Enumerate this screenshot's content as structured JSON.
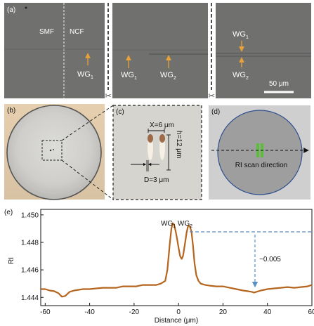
{
  "panels": {
    "a": {
      "label": "(a)",
      "sub1": {
        "smf": "SMF",
        "ncf": "NCF",
        "wg1": "WG",
        "wg1_sub": "1"
      },
      "sub2": {
        "wg1": "WG",
        "wg1_sub": "1",
        "wg2": "WG",
        "wg2_sub": "2"
      },
      "sub3": {
        "wg1": "WG",
        "wg1_sub": "1",
        "wg2": "WG",
        "wg2_sub": "2",
        "scale": "50 μm"
      }
    },
    "b": {
      "label": "(b)"
    },
    "c": {
      "label": "(c)",
      "x": "X=6 μm",
      "h": "h=12 μm",
      "d": "D=3 μm"
    },
    "d": {
      "label": "(d)",
      "scan": "RI scan direction"
    },
    "e": {
      "label": "(e)",
      "annotation": "~0.005",
      "peak_wg1": "WG",
      "peak_wg1_sub": "1",
      "peak_wg2": " WG",
      "peak_wg2_sub": "2"
    }
  },
  "colors": {
    "arrow": "#e8a23a",
    "curve": "#b5651d",
    "dashed": "#5b8fc7",
    "green": "#5bbf3a"
  },
  "chart_data": {
    "type": "line",
    "xlabel": "Distance (μm)",
    "ylabel": "RI",
    "xlim": [
      -62,
      60
    ],
    "ylim": [
      1.4434,
      1.4504
    ],
    "xticks": [
      -60,
      -40,
      -20,
      0,
      20,
      40,
      60
    ],
    "yticks": [
      1.444,
      1.446,
      1.448,
      1.45
    ],
    "ytick_labels": [
      "1.444",
      "1.446",
      "1.448",
      "1.450"
    ],
    "series": [
      {
        "x": [
          -62,
          -60,
          -58,
          -56,
          -54,
          -52.5,
          -51,
          -49,
          -47,
          -45,
          -43,
          -40,
          -37,
          -34,
          -31,
          -28,
          -25,
          -22,
          -19,
          -16,
          -13,
          -10,
          -8,
          -6,
          -5,
          -4,
          -3.2,
          -2.6,
          -2,
          -1.3,
          -0.6,
          0,
          0.7,
          1.4,
          2,
          2.8,
          3.6,
          4.3,
          5,
          5.8,
          6.5,
          7.2,
          8,
          9,
          10,
          12,
          14,
          17,
          20,
          23,
          26,
          29,
          31,
          33,
          34,
          35,
          37,
          40,
          43,
          46,
          49,
          52,
          55,
          58,
          60
        ],
        "y": [
          1.4446,
          1.4446,
          1.4445,
          1.44445,
          1.4443,
          1.44405,
          1.4441,
          1.4444,
          1.4445,
          1.44455,
          1.4446,
          1.4446,
          1.44465,
          1.4447,
          1.4447,
          1.4447,
          1.4448,
          1.4448,
          1.4448,
          1.4449,
          1.4449,
          1.4449,
          1.445,
          1.4452,
          1.446,
          1.4478,
          1.449,
          1.4494,
          1.4493,
          1.4488,
          1.4482,
          1.4476,
          1.447,
          1.4468,
          1.447,
          1.4478,
          1.4487,
          1.4492,
          1.4492,
          1.4488,
          1.4478,
          1.4465,
          1.4456,
          1.4452,
          1.445,
          1.4449,
          1.44485,
          1.4448,
          1.4448,
          1.4447,
          1.4446,
          1.4445,
          1.44445,
          1.4444,
          1.44435,
          1.4444,
          1.4445,
          1.4446,
          1.44465,
          1.4447,
          1.44475,
          1.4447,
          1.44475,
          1.4448,
          1.4449
        ]
      }
    ],
    "grid": false,
    "legend": "none"
  }
}
